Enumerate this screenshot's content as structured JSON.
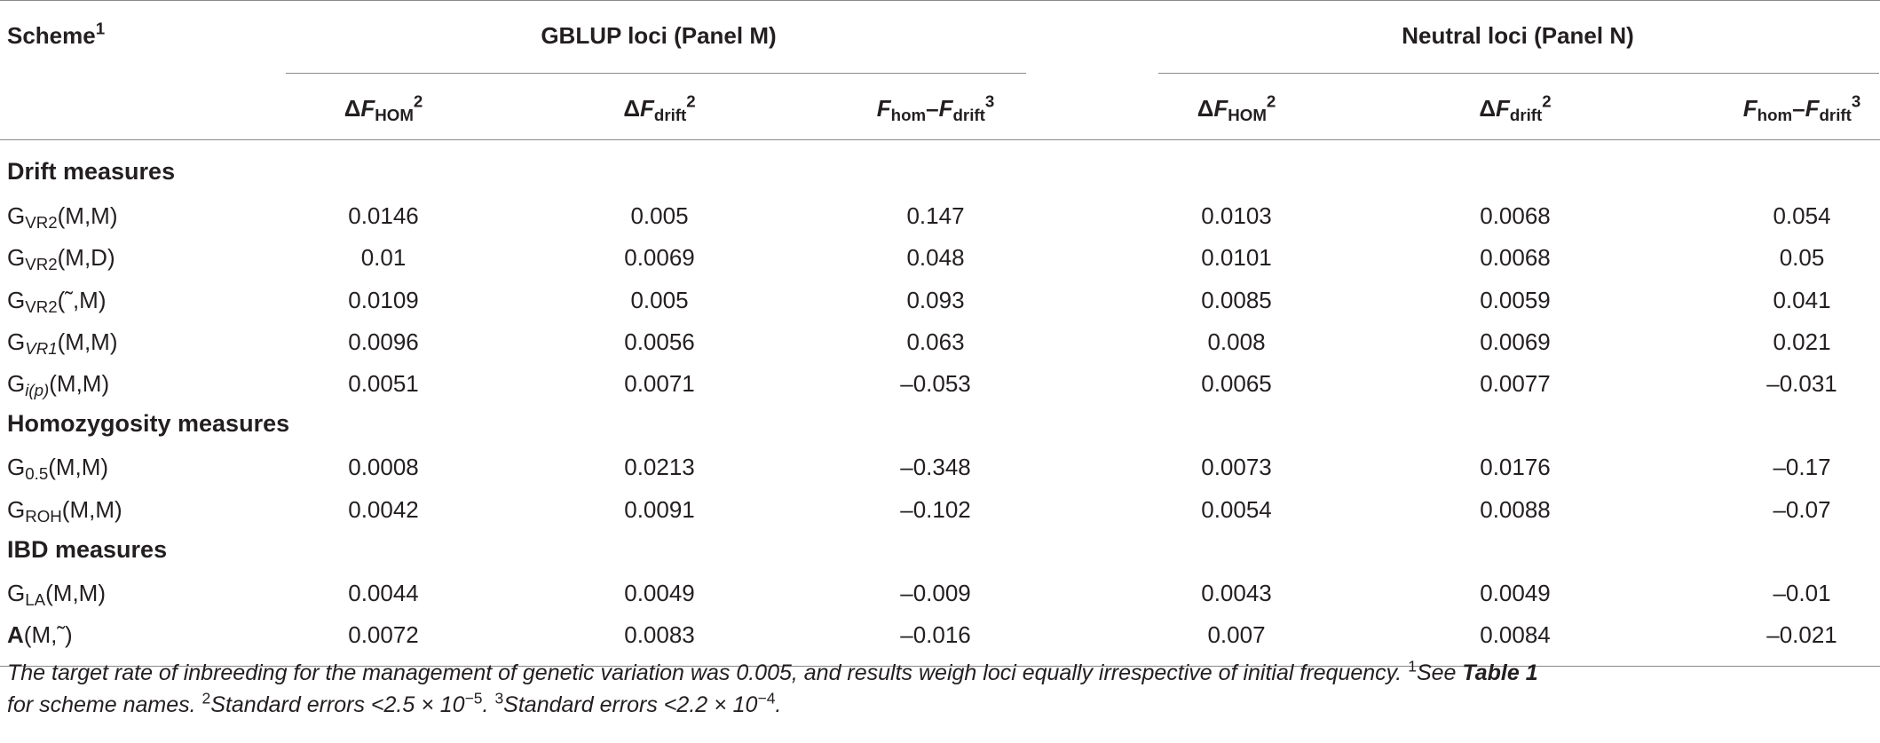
{
  "header": {
    "scheme": "Scheme",
    "scheme_note": "1",
    "group1": "GBLUP loci (Panel M)",
    "group2": "Neutral loci (Panel N)",
    "col_delta": "Δ",
    "col_F": "F",
    "sub_hom_caps": "HOM",
    "sub_drift": "drift",
    "sub_hom": "hom",
    "dash": "–",
    "note2": "2",
    "note3": "3"
  },
  "sections": {
    "drift": "Drift measures",
    "hom": "Homozygosity measures",
    "ibd": "IBD measures"
  },
  "rows": [
    {
      "base": "G",
      "sub": "VR2",
      "arg": "(M,M)",
      "vals": [
        "0.0146",
        "0.005",
        "0.147",
        "0.0103",
        "0.0068",
        "0.054"
      ]
    },
    {
      "base": "G",
      "sub": "VR2",
      "arg": "(M,D)",
      "vals": [
        "0.01",
        "0.0069",
        "0.048",
        "0.0101",
        "0.0068",
        "0.05"
      ]
    },
    {
      "base": "G",
      "sub": "VR2",
      "arg": "(˜,M)",
      "vals": [
        "0.0109",
        "0.005",
        "0.093",
        "0.0085",
        "0.0059",
        "0.041"
      ]
    },
    {
      "base": "G",
      "sub": "VR1",
      "arg": "(M,M)",
      "vals": [
        "0.0096",
        "0.0056",
        "0.063",
        "0.008",
        "0.0069",
        "0.021"
      ]
    },
    {
      "base": "G",
      "sub": "i(p)",
      "arg": "(M,M)",
      "vals": [
        "0.0051",
        "0.0071",
        "–0.053",
        "0.0065",
        "0.0077",
        "–0.031"
      ]
    },
    {
      "base": "G",
      "sub": "0.5",
      "arg": "(M,M)",
      "vals": [
        "0.0008",
        "0.0213",
        "–0.348",
        "0.0073",
        "0.0176",
        "–0.17"
      ]
    },
    {
      "base": "G",
      "sub": "ROH",
      "arg": "(M,M)",
      "vals": [
        "0.0042",
        "0.0091",
        "–0.102",
        "0.0054",
        "0.0088",
        "–0.07"
      ]
    },
    {
      "base": "G",
      "sub": "LA",
      "arg": "(M,M)",
      "vals": [
        "0.0044",
        "0.0049",
        "–0.009",
        "0.0043",
        "0.0049",
        "–0.01"
      ]
    },
    {
      "base": "A",
      "sub": "",
      "arg": "(M,˜)",
      "vals": [
        "0.0072",
        "0.0083",
        "–0.016",
        "0.007",
        "0.0084",
        "–0.021"
      ]
    }
  ],
  "footnote": {
    "text1": "The target rate of inbreeding for the management of genetic variation was 0.005, and results weigh loci equally irrespective of initial frequency.",
    "n1": "1",
    "see": "See",
    "table_ref": "Table 1",
    "text2": "for scheme names.",
    "n2": "2",
    "se1": "Standard errors <2.5 × 10",
    "exp1": "−5",
    "n3": "3",
    "se2": "Standard errors <2.2 × 10",
    "exp2": "−4"
  }
}
